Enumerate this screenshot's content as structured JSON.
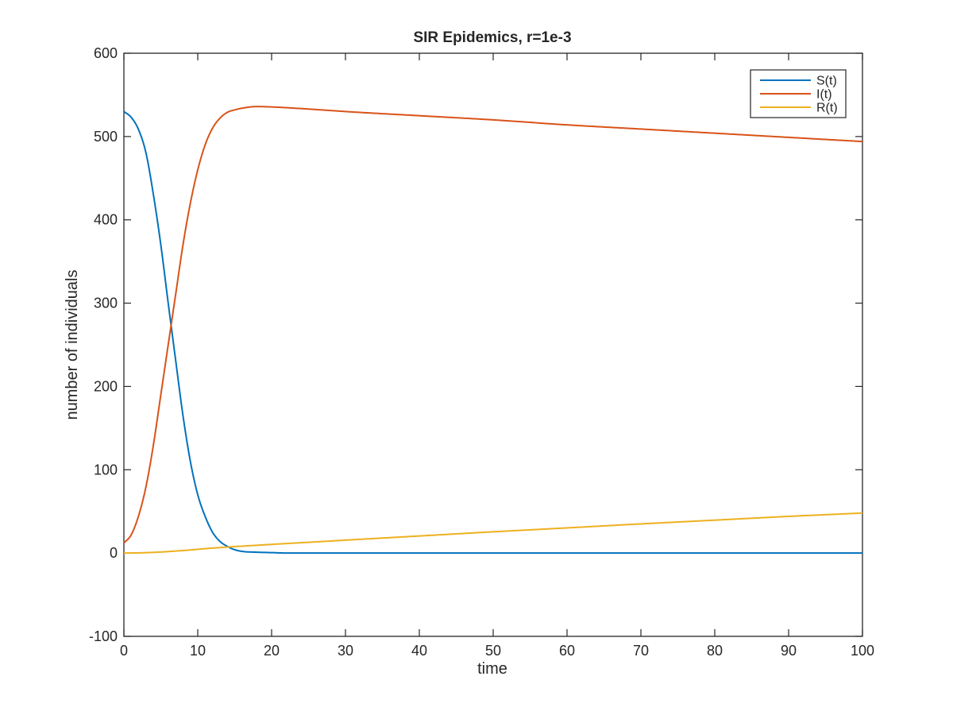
{
  "chart_data": {
    "type": "line",
    "title": "SIR Epidemics, r=1e-3",
    "xlabel": "time",
    "ylabel": "number of individuals",
    "xlim": [
      0,
      100
    ],
    "ylim": [
      -100,
      600
    ],
    "xticks": [
      0,
      10,
      20,
      30,
      40,
      50,
      60,
      70,
      80,
      90,
      100
    ],
    "yticks": [
      -100,
      0,
      100,
      200,
      300,
      400,
      500,
      600
    ],
    "grid": false,
    "legend_position": "top-right",
    "series": [
      {
        "name": "S(t)",
        "color": "#0072BD",
        "x": [
          0,
          1,
          2,
          3,
          4,
          5,
          6,
          7,
          8,
          9,
          10,
          11,
          12,
          13,
          14,
          15,
          16,
          18,
          20,
          22,
          25,
          30,
          40,
          50,
          60,
          70,
          80,
          90,
          100
        ],
        "y": [
          530,
          523,
          508,
          480,
          430,
          370,
          300,
          232,
          165,
          110,
          70,
          44,
          25,
          14,
          8,
          4,
          2,
          1,
          0.5,
          0,
          0,
          0,
          0,
          0,
          0,
          0,
          0,
          0,
          0
        ]
      },
      {
        "name": "I(t)",
        "color": "#D95319",
        "x": [
          0,
          1,
          2,
          3,
          4,
          5,
          6,
          7,
          8,
          9,
          10,
          11,
          12,
          13,
          14,
          15,
          16,
          18,
          20,
          25,
          30,
          40,
          50,
          60,
          70,
          80,
          90,
          100
        ],
        "y": [
          12,
          22,
          45,
          80,
          130,
          190,
          250,
          310,
          370,
          420,
          460,
          490,
          510,
          522,
          529,
          532,
          534,
          536,
          535.5,
          533,
          530,
          525,
          520,
          514,
          509,
          504,
          499,
          494
        ]
      },
      {
        "name": "R(t)",
        "color": "#EDB120",
        "x": [
          0,
          2,
          4,
          6,
          8,
          10,
          12,
          14,
          16,
          18,
          20,
          25,
          30,
          40,
          50,
          60,
          70,
          80,
          90,
          100
        ],
        "y": [
          0,
          0.2,
          0.8,
          1.8,
          3.0,
          4.5,
          6.0,
          7.2,
          8.3,
          9.3,
          10.4,
          12.9,
          15.5,
          20.5,
          25.5,
          30.2,
          35,
          39.5,
          44,
          48
        ]
      }
    ]
  }
}
